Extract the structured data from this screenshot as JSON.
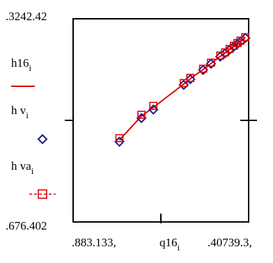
{
  "chart_data": {
    "type": "scatter",
    "y_axis": {
      "max_label": "3242.42",
      "min_label": "676.402",
      "range": [
        676.402,
        3242.42
      ]
    },
    "x_axis": {
      "min_label": "883.133",
      "max_label": "40739.3",
      "range": [
        883.133,
        40739.3
      ],
      "label": "q16",
      "label_sub": "i"
    },
    "legend": [
      {
        "name": "h16",
        "sub": "i",
        "style": "line",
        "color": "#e00000"
      },
      {
        "name": "h v",
        "sub": "i",
        "style": "diamond",
        "color": "#1a1a8c"
      },
      {
        "name": "h va",
        "sub": "i",
        "style": "square-dashed",
        "color": "#e00000"
      }
    ],
    "series": [
      {
        "name": "h16",
        "x": [
          11400,
          16400,
          19100,
          26000,
          27500,
          30400,
          32200,
          34300,
          35400,
          36400,
          37400,
          38200,
          38900,
          40000
        ],
        "y": [
          1712,
          2013,
          2123,
          2418,
          2486,
          2602,
          2679,
          2770,
          2811,
          2855,
          2896,
          2931,
          2960,
          3004
        ]
      },
      {
        "name": "h v",
        "x": [
          11400,
          16400,
          19100,
          26000,
          27500,
          30400,
          32200,
          34300,
          35400,
          36400,
          37400,
          38200,
          38900,
          40000
        ],
        "y": [
          1690,
          1988,
          2096,
          2408,
          2479,
          2596,
          2675,
          2765,
          2807,
          2851,
          2892,
          2926,
          2956,
          3000
        ]
      },
      {
        "name": "h va",
        "x": [
          11400,
          16400,
          19100,
          26000,
          27500,
          30400,
          32200,
          34300,
          35400,
          36400,
          37400,
          38200,
          38900,
          40000
        ],
        "y": [
          1735,
          2030,
          2142,
          2430,
          2496,
          2612,
          2688,
          2778,
          2818,
          2861,
          2902,
          2936,
          2966,
          3010
        ]
      }
    ]
  }
}
